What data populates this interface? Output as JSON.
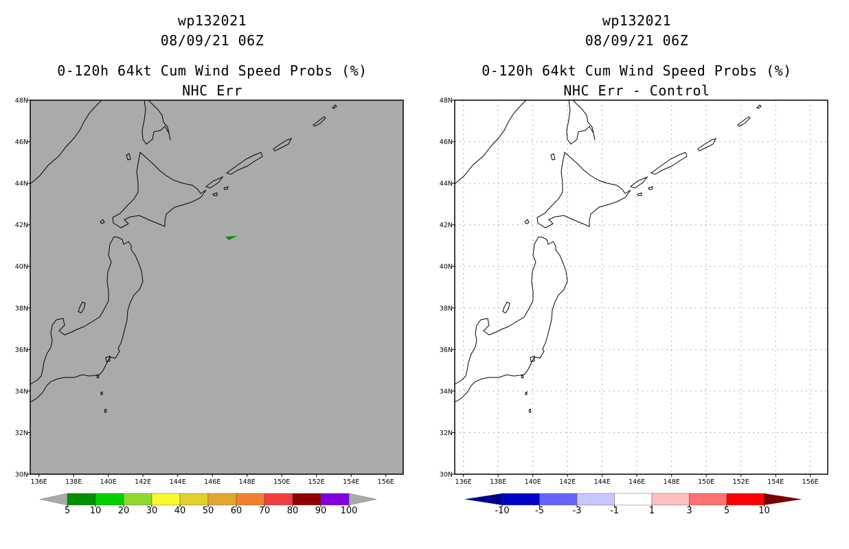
{
  "panels": [
    {
      "id": "left",
      "storm_id": "wp132021",
      "datetime": "08/09/21 06Z",
      "product": "0-120h 64kt Cum Wind Speed Probs (%)",
      "subtitle": "NHC Err",
      "background": "#aaaaaa",
      "gridlines": false,
      "colorbar": {
        "colors": [
          "#009000",
          "#00d000",
          "#90d830",
          "#f8f830",
          "#e0d030",
          "#e0a830",
          "#f08030",
          "#f04040",
          "#900000",
          "#8000e0"
        ],
        "arrow_color": "#aaaaaa",
        "labels": [
          "5",
          "10",
          "20",
          "30",
          "40",
          "50",
          "60",
          "70",
          "80",
          "90",
          "100"
        ]
      },
      "features": [
        {
          "name": "probability-5pct-area",
          "color": "#009000",
          "lon": 147.1,
          "lat": 41.4
        }
      ]
    },
    {
      "id": "right",
      "storm_id": "wp132021",
      "datetime": "08/09/21 06Z",
      "product": "0-120h 64kt Cum Wind Speed Probs (%)",
      "subtitle": "NHC Err - Control",
      "background": "#ffffff",
      "gridlines": true,
      "colorbar": {
        "colors": [
          "#0000c8",
          "#6666ff",
          "#c8c8ff",
          "#ffffff",
          "#ffc0c0",
          "#ff7070",
          "#ff0000"
        ],
        "arrow_left_color": "#00008c",
        "arrow_right_color": "#780000",
        "labels": [
          "-10",
          "-5",
          "-3",
          "-1",
          "1",
          "3",
          "5",
          "10"
        ]
      },
      "features": []
    }
  ],
  "map": {
    "lon_range": [
      135.5,
      157.0
    ],
    "lat_range": [
      30,
      48
    ],
    "lon_ticks": [
      "136E",
      "138E",
      "140E",
      "142E",
      "144E",
      "146E",
      "148E",
      "150E",
      "152E",
      "154E",
      "156E"
    ],
    "lat_ticks": [
      "30N",
      "32N",
      "34N",
      "36N",
      "38N",
      "40N",
      "42N",
      "44N",
      "46N",
      "48N"
    ]
  }
}
